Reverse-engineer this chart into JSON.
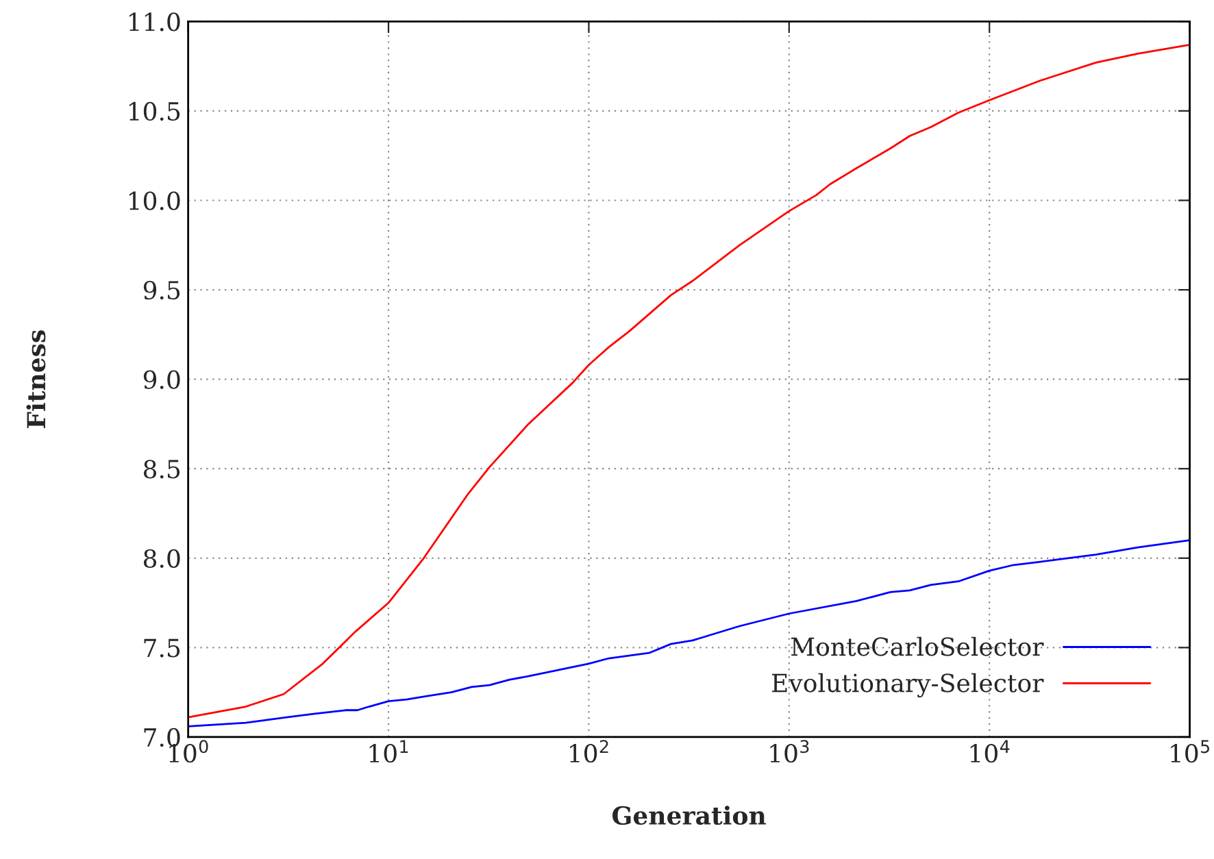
{
  "chart_data": {
    "type": "line",
    "xlabel": "Generation",
    "ylabel": "Fitness",
    "log": "x",
    "xlim": [
      1,
      100000
    ],
    "ylim": [
      7.0,
      11.0
    ],
    "xticks": [
      {
        "value": 1,
        "label": "10$^{0}$"
      },
      {
        "value": 10,
        "label": "10$^{1}$"
      },
      {
        "value": 100,
        "label": "10$^{2}$"
      },
      {
        "value": 1000,
        "label": "10$^{3}$"
      },
      {
        "value": 10000,
        "label": "10$^{4}$"
      },
      {
        "value": 100000,
        "label": "10$^{5}$"
      }
    ],
    "yticks": [
      {
        "value": 7.0,
        "label": "7.0"
      },
      {
        "value": 7.5,
        "label": "7.5"
      },
      {
        "value": 8.0,
        "label": "8.0"
      },
      {
        "value": 8.5,
        "label": "8.5"
      },
      {
        "value": 9.0,
        "label": "9.0"
      },
      {
        "value": 9.5,
        "label": "9.5"
      },
      {
        "value": 10.0,
        "label": "10.0"
      },
      {
        "value": 10.5,
        "label": "10.5"
      },
      {
        "value": 11.0,
        "label": "11.0"
      }
    ],
    "grid": true,
    "legend": "bottom right",
    "line_style": "solid",
    "marker": "none",
    "series": [
      {
        "name": "MonteCarloSelector",
        "color": "#0000ff",
        "x": [
          1,
          1.94,
          3.1,
          4.3,
          6.1,
          7,
          8,
          10,
          12.3,
          15.8,
          20.6,
          26,
          32,
          40,
          50,
          100,
          126,
          200,
          257,
          330,
          566,
          1000,
          2170,
          3200,
          4000,
          5100,
          7000,
          10000,
          13000,
          18000,
          34000,
          55000,
          100000
        ],
        "values": [
          7.06,
          7.08,
          7.11,
          7.13,
          7.15,
          7.15,
          7.17,
          7.2,
          7.21,
          7.23,
          7.25,
          7.28,
          7.29,
          7.32,
          7.34,
          7.41,
          7.44,
          7.47,
          7.52,
          7.54,
          7.62,
          7.69,
          7.76,
          7.81,
          7.82,
          7.85,
          7.87,
          7.93,
          7.96,
          7.98,
          8.02,
          8.06,
          8.1
        ]
      },
      {
        "name": "Evolutionary-Selector",
        "color": "#ff0000",
        "x": [
          1,
          1.94,
          3.0,
          4.7,
          6.85,
          10,
          15,
          25,
          32,
          50,
          83,
          100,
          126,
          160,
          257,
          330,
          566,
          1000,
          1370,
          1600,
          2170,
          3200,
          4000,
          5100,
          7000,
          10000,
          18000,
          34000,
          55000,
          100000
        ],
        "values": [
          7.11,
          7.17,
          7.24,
          7.41,
          7.59,
          7.75,
          8.0,
          8.36,
          8.51,
          8.75,
          8.98,
          9.08,
          9.18,
          9.27,
          9.47,
          9.55,
          9.75,
          9.94,
          10.03,
          10.09,
          10.18,
          10.29,
          10.36,
          10.41,
          10.49,
          10.56,
          10.67,
          10.77,
          10.82,
          10.87
        ]
      }
    ]
  }
}
